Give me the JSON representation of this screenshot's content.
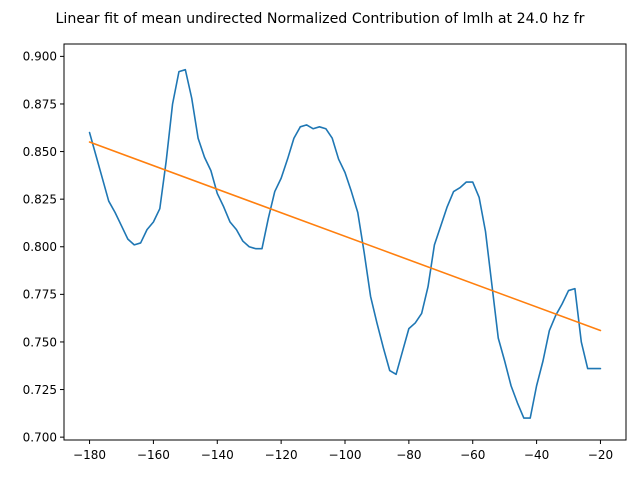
{
  "chart_data": {
    "type": "line",
    "title": "Linear fit of mean undirected Normalized Contribution of lmlh at 24.0 hz fr",
    "xlabel": "",
    "ylabel": "",
    "xlim": [
      -188.0,
      -12.0
    ],
    "ylim": [
      0.6985,
      0.9065
    ],
    "x_ticks": [
      -180,
      -160,
      -140,
      -120,
      -100,
      -80,
      -60,
      -40,
      -20
    ],
    "x_tick_labels": [
      "−180",
      "−160",
      "−140",
      "−120",
      "−100",
      "−80",
      "−60",
      "−40",
      "−20"
    ],
    "y_ticks": [
      0.7,
      0.725,
      0.75,
      0.775,
      0.8,
      0.825,
      0.85,
      0.875,
      0.9
    ],
    "y_tick_labels": [
      "0.700",
      "0.725",
      "0.750",
      "0.775",
      "0.800",
      "0.825",
      "0.850",
      "0.875",
      "0.900"
    ],
    "grid": false,
    "legend": "none",
    "colors": {
      "data": "#1f77b4",
      "fit": "#ff7f0e",
      "axes": "#000000"
    },
    "series": [
      {
        "x": [
          -180,
          -178,
          -176,
          -174,
          -172,
          -170,
          -168,
          -166,
          -164,
          -162,
          -160,
          -158,
          -156,
          -154,
          -152,
          -150,
          -148,
          -146,
          -144,
          -142,
          -140,
          -138,
          -136,
          -134,
          -132,
          -130,
          -128,
          -126,
          -124,
          -122,
          -120,
          -118,
          -116,
          -114,
          -112,
          -110,
          -108,
          -106,
          -104,
          -102,
          -100,
          -98,
          -96,
          -94,
          -92,
          -90,
          -88,
          -86,
          -84,
          -82,
          -80,
          -78,
          -76,
          -74,
          -72,
          -70,
          -68,
          -66,
          -64,
          -62,
          -60,
          -58,
          -56,
          -54,
          -52,
          -50,
          -48,
          -46,
          -44,
          -42,
          -40,
          -38,
          -36,
          -34,
          -32,
          -30,
          -28,
          -26,
          -24,
          -22,
          -20
        ],
        "values": [
          0.86,
          0.848,
          0.836,
          0.824,
          0.818,
          0.811,
          0.804,
          0.801,
          0.802,
          0.809,
          0.813,
          0.82,
          0.845,
          0.875,
          0.892,
          0.893,
          0.878,
          0.857,
          0.847,
          0.84,
          0.828,
          0.821,
          0.813,
          0.809,
          0.803,
          0.8,
          0.799,
          0.799,
          0.815,
          0.829,
          0.836,
          0.846,
          0.857,
          0.863,
          0.864,
          0.862,
          0.863,
          0.862,
          0.857,
          0.846,
          0.839,
          0.829,
          0.818,
          0.797,
          0.774,
          0.76,
          0.747,
          0.735,
          0.733,
          0.745,
          0.757,
          0.76,
          0.765,
          0.779,
          0.801,
          0.811,
          0.821,
          0.829,
          0.831,
          0.834,
          0.834,
          0.826,
          0.808,
          0.78,
          0.752,
          0.74,
          0.727,
          0.718,
          0.71,
          0.71,
          0.727,
          0.74,
          0.756,
          0.764,
          0.77,
          0.777,
          0.778,
          0.75,
          0.736,
          0.736,
          0.736
        ]
      },
      {
        "x": [
          -180,
          -20
        ],
        "values": [
          0.855,
          0.756
        ]
      }
    ]
  }
}
